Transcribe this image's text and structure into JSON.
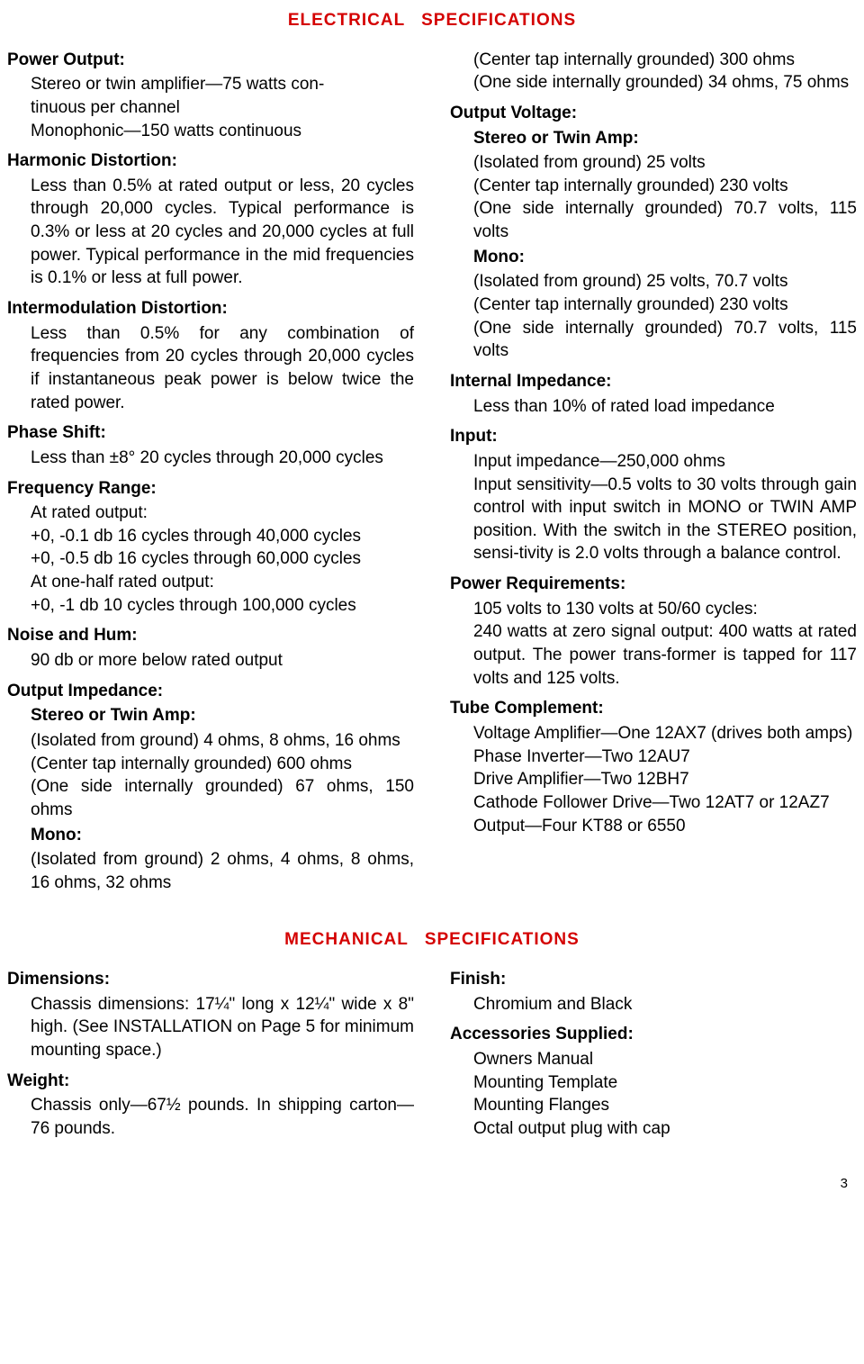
{
  "title_electrical": "ELECTRICAL SPECIFICATIONS",
  "title_mechanical": "MECHANICAL SPECIFICATIONS",
  "page_number": "3",
  "colors": {
    "heading": "#d40000",
    "text": "#000000",
    "background": "#ffffff"
  },
  "electrical": {
    "power_output": {
      "label": "Power Output:",
      "l1": "Stereo or twin amplifier—75 watts con-",
      "l2": "tinuous per channel",
      "l3": "Monophonic—150 watts continuous"
    },
    "harmonic_distortion": {
      "label": "Harmonic Distortion:",
      "body": "Less than 0.5% at rated output or less, 20 cycles through 20,000 cycles. Typical performance is 0.3% or less at 20 cycles and 20,000 cycles at full power. Typical performance in the mid frequencies is 0.1% or less at full power."
    },
    "intermodulation_distortion": {
      "label": "Intermodulation Distortion:",
      "body": "Less than 0.5% for any combination of frequencies from 20 cycles through 20,000 cycles if instantaneous peak power is below twice the rated power."
    },
    "phase_shift": {
      "label": "Phase Shift:",
      "body": "Less than ±8° 20 cycles through 20,000 cycles"
    },
    "frequency_range": {
      "label": "Frequency Range:",
      "l1": "At rated output:",
      "l2": "+0, -0.1 db 16 cycles through 40,000 cycles",
      "l3": "+0, -0.5 db 16 cycles through 60,000 cycles",
      "l4": "At one-half rated output:",
      "l5": "+0, -1 db 10 cycles through 100,000 cycles"
    },
    "noise_hum": {
      "label": "Noise and Hum:",
      "body": "90 db or more below rated output"
    },
    "output_impedance": {
      "label": "Output Impedance:",
      "stereo_label": "Stereo or Twin Amp:",
      "s1": "(Isolated from ground) 4 ohms, 8 ohms, 16 ohms",
      "s2": "(Center tap internally grounded) 600 ohms",
      "s3": "(One side internally grounded) 67 ohms, 150 ohms",
      "mono_label": "Mono:",
      "m1": "(Isolated from ground) 2 ohms, 4 ohms, 8 ohms, 16 ohms, 32 ohms",
      "m2": "(Center tap internally grounded) 300 ohms",
      "m3": "(One side internally grounded) 34 ohms, 75 ohms"
    },
    "output_voltage": {
      "label": "Output Voltage:",
      "stereo_label": "Stereo or Twin Amp:",
      "s1": "(Isolated from ground) 25 volts",
      "s2": "(Center tap internally grounded) 230 volts",
      "s3": "(One side internally grounded) 70.7 volts, 115 volts",
      "mono_label": "Mono:",
      "m1": "(Isolated from ground) 25 volts, 70.7 volts",
      "m2": "(Center tap internally grounded) 230 volts",
      "m3": "(One side internally grounded) 70.7 volts, 115 volts"
    },
    "internal_impedance": {
      "label": "Internal Impedance:",
      "body": "Less than 10% of rated load impedance"
    },
    "input": {
      "label": "Input:",
      "l1": "Input impedance—250,000 ohms",
      "l2": "Input sensitivity—0.5 volts to 30 volts through gain control with input switch in MONO or TWIN AMP position. With the switch in the STEREO position, sensi-tivity is 2.0 volts through a balance control."
    },
    "power_requirements": {
      "label": "Power Requirements:",
      "l1": "105 volts to 130 volts at 50/60 cycles:",
      "l2": "240 watts at zero signal output: 400 watts at rated output. The power trans-former is tapped for 117 volts and 125 volts."
    },
    "tube_complement": {
      "label": "Tube Complement:",
      "l1": "Voltage Amplifier—One 12AX7 (drives both amps)",
      "l2": "Phase Inverter—Two 12AU7",
      "l3": "Drive Amplifier—Two 12BH7",
      "l4": "Cathode Follower Drive—Two 12AT7 or 12AZ7",
      "l5": "Output—Four KT88 or 6550"
    }
  },
  "mechanical": {
    "dimensions": {
      "label": "Dimensions:",
      "body": "Chassis dimensions: 17¼\" long x 12¼\" wide x 8\" high. (See INSTALLATION on Page 5 for minimum mounting space.)"
    },
    "weight": {
      "label": "Weight:",
      "body": "Chassis only—67½ pounds. In shipping carton—76 pounds."
    },
    "finish": {
      "label": "Finish:",
      "body": "Chromium and Black"
    },
    "accessories": {
      "label": "Accessories Supplied:",
      "l1": "Owners Manual",
      "l2": "Mounting Template",
      "l3": "Mounting Flanges",
      "l4": "Octal output plug with cap"
    }
  }
}
